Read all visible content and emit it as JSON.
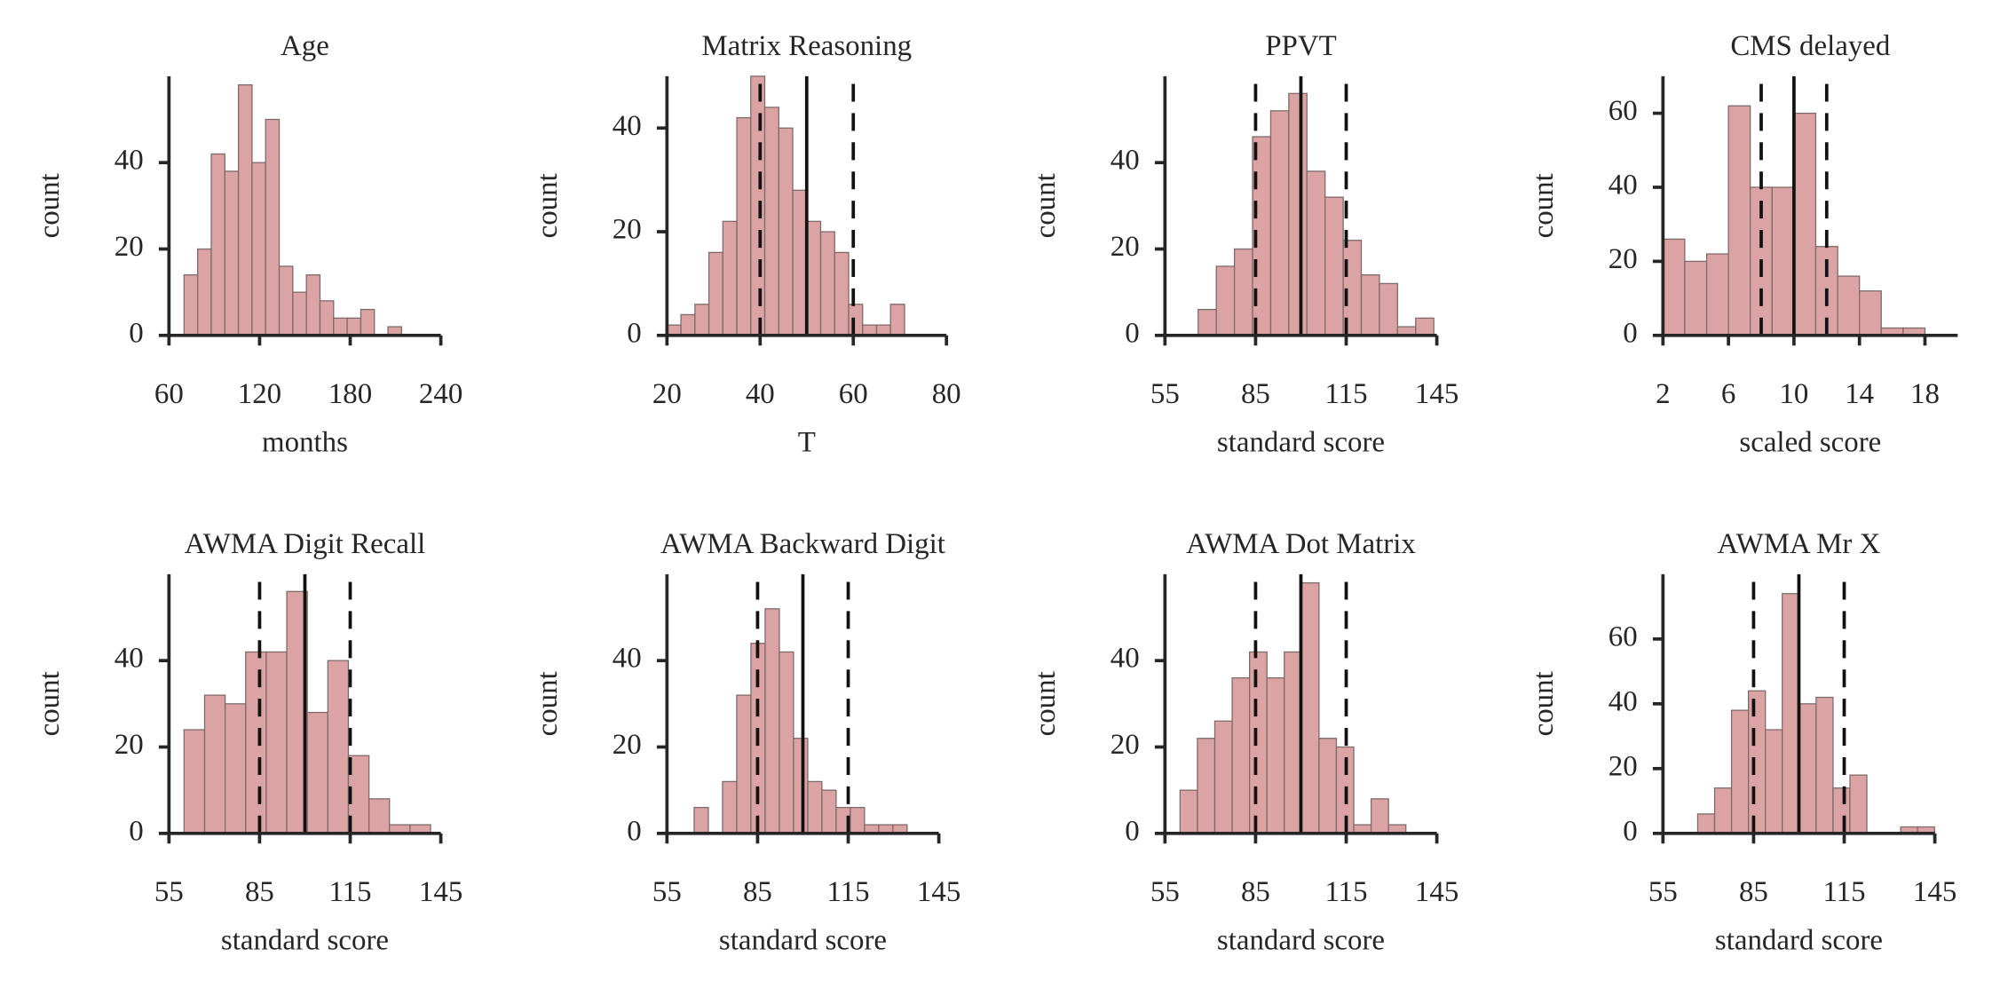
{
  "chart_data": [
    {
      "type": "histogram",
      "title": "Age",
      "xlabel": "months",
      "ylabel": "count",
      "color": "#dba3a3",
      "edgecolor": "#7d6a6a",
      "bins": [
        70,
        79,
        88,
        97,
        106,
        115,
        124,
        133,
        142,
        151,
        160,
        169,
        178,
        187,
        196,
        205,
        214
      ],
      "values": [
        14,
        20,
        42,
        38,
        58,
        40,
        50,
        16,
        10,
        14,
        8,
        4,
        4,
        6,
        0,
        2
      ],
      "xlim": [
        60,
        240
      ],
      "xticks": [
        60,
        120,
        180,
        240
      ],
      "ylim": [
        0,
        60
      ],
      "yticks": [
        0,
        20,
        40
      ],
      "reference_lines": []
    },
    {
      "type": "histogram",
      "title": "Matrix Reasoning",
      "xlabel": "T",
      "ylabel": "count",
      "color": "#dba3a3",
      "edgecolor": "#7d6a6a",
      "bins": [
        20,
        23,
        26,
        29,
        32,
        35,
        38,
        41,
        44,
        47,
        50,
        53,
        56,
        59,
        62,
        65,
        68,
        71
      ],
      "values": [
        2,
        4,
        6,
        16,
        22,
        42,
        50,
        44,
        40,
        28,
        22,
        20,
        16,
        6,
        2,
        2,
        6
      ],
      "xlim": [
        20,
        80
      ],
      "xticks": [
        20,
        40,
        60,
        80
      ],
      "ylim": [
        0,
        50
      ],
      "yticks": [
        0,
        20,
        40
      ],
      "reference_lines": [
        {
          "value": 40,
          "style": "dashed"
        },
        {
          "value": 50,
          "style": "solid"
        },
        {
          "value": 60,
          "style": "dashed"
        }
      ]
    },
    {
      "type": "histogram",
      "title": "PPVT",
      "xlabel": "standard score",
      "ylabel": "count",
      "color": "#dba3a3",
      "edgecolor": "#7d6a6a",
      "bins": [
        66,
        72,
        78,
        84,
        90,
        96,
        102,
        108,
        114,
        120,
        126,
        132,
        138,
        144
      ],
      "values": [
        6,
        16,
        20,
        46,
        52,
        56,
        38,
        32,
        22,
        14,
        12,
        2,
        4
      ],
      "xlim": [
        55,
        145
      ],
      "xticks": [
        55,
        85,
        115,
        145
      ],
      "ylim": [
        0,
        60
      ],
      "yticks": [
        0,
        20,
        40
      ],
      "reference_lines": [
        {
          "value": 85,
          "style": "dashed"
        },
        {
          "value": 100,
          "style": "solid"
        },
        {
          "value": 115,
          "style": "dashed"
        }
      ]
    },
    {
      "type": "histogram",
      "title": "CMS delayed",
      "xlabel": "scaled score",
      "ylabel": "count",
      "color": "#dba3a3",
      "edgecolor": "#7d6a6a",
      "bins": [
        2,
        3.33,
        4.67,
        6,
        7.33,
        8.67,
        10,
        11.33,
        12.67,
        14,
        15.33,
        16.67,
        18
      ],
      "values": [
        26,
        20,
        22,
        62,
        40,
        40,
        60,
        24,
        16,
        12,
        2,
        2
      ],
      "xlim": [
        2,
        20
      ],
      "xticks": [
        2,
        6,
        10,
        14,
        18
      ],
      "ylim": [
        0,
        70
      ],
      "yticks": [
        0,
        20,
        40,
        60
      ],
      "reference_lines": [
        {
          "value": 8,
          "style": "dashed"
        },
        {
          "value": 10,
          "style": "solid"
        },
        {
          "value": 12,
          "style": "dashed"
        }
      ]
    },
    {
      "type": "histogram",
      "title": "AWMA Digit Recall",
      "xlabel": "standard score",
      "ylabel": "count",
      "color": "#dba3a3",
      "edgecolor": "#7d6a6a",
      "bins": [
        60,
        66.8,
        73.6,
        80.4,
        87.2,
        94,
        100.8,
        107.6,
        114.4,
        121.2,
        128,
        134.8,
        141.6
      ],
      "values": [
        24,
        32,
        30,
        42,
        42,
        56,
        28,
        40,
        18,
        8,
        2,
        2
      ],
      "xlim": [
        55,
        145
      ],
      "xticks": [
        55,
        85,
        115,
        145
      ],
      "ylim": [
        0,
        60
      ],
      "yticks": [
        0,
        20,
        40
      ],
      "reference_lines": [
        {
          "value": 85,
          "style": "dashed"
        },
        {
          "value": 100,
          "style": "solid"
        },
        {
          "value": 115,
          "style": "dashed"
        }
      ]
    },
    {
      "type": "histogram",
      "title": "AWMA Backward Digit",
      "xlabel": "standard score",
      "ylabel": "count",
      "color": "#dba3a3",
      "edgecolor": "#7d6a6a",
      "bins": [
        64,
        68.7,
        73.4,
        78.1,
        82.8,
        87.5,
        92.2,
        96.9,
        101.6,
        106.3,
        111,
        115.7,
        120.4,
        125.1,
        129.8,
        134.5
      ],
      "values": [
        6,
        0,
        12,
        32,
        44,
        52,
        42,
        22,
        12,
        10,
        6,
        6,
        2,
        2,
        2
      ],
      "xlim": [
        55,
        145
      ],
      "xticks": [
        55,
        85,
        115,
        145
      ],
      "ylim": [
        0,
        60
      ],
      "yticks": [
        0,
        20,
        40
      ],
      "reference_lines": [
        {
          "value": 85,
          "style": "dashed"
        },
        {
          "value": 100,
          "style": "solid"
        },
        {
          "value": 115,
          "style": "dashed"
        }
      ]
    },
    {
      "type": "histogram",
      "title": "AWMA Dot Matrix",
      "xlabel": "standard score",
      "ylabel": "count",
      "color": "#dba3a3",
      "edgecolor": "#7d6a6a",
      "bins": [
        60,
        65.75,
        71.5,
        77.25,
        83,
        88.75,
        94.5,
        100.25,
        106,
        111.75,
        117.5,
        123.25,
        129,
        134.75
      ],
      "values": [
        10,
        22,
        26,
        36,
        42,
        36,
        42,
        58,
        22,
        20,
        2,
        8,
        2
      ],
      "xlim": [
        55,
        145
      ],
      "xticks": [
        55,
        85,
        115,
        145
      ],
      "ylim": [
        0,
        60
      ],
      "yticks": [
        0,
        20,
        40
      ],
      "reference_lines": [
        {
          "value": 85,
          "style": "dashed"
        },
        {
          "value": 100,
          "style": "solid"
        },
        {
          "value": 115,
          "style": "dashed"
        }
      ]
    },
    {
      "type": "histogram",
      "title": "AWMA Mr X",
      "xlabel": "standard score",
      "ylabel": "count",
      "color": "#dba3a3",
      "edgecolor": "#7d6a6a",
      "bins": [
        66.5,
        72.1,
        77.7,
        83.3,
        88.9,
        94.5,
        100.1,
        105.7,
        111.3,
        116.9,
        122.5,
        128.1,
        133.7,
        139.3,
        144.9
      ],
      "values": [
        6,
        14,
        38,
        44,
        32,
        74,
        40,
        42,
        14,
        18,
        0,
        0,
        2,
        2
      ],
      "xlim": [
        55,
        145
      ],
      "xticks": [
        55,
        85,
        115,
        145
      ],
      "ylim": [
        0,
        80
      ],
      "yticks": [
        0,
        20,
        40,
        60
      ],
      "reference_lines": [
        {
          "value": 85,
          "style": "dashed"
        },
        {
          "value": 100,
          "style": "solid"
        },
        {
          "value": 115,
          "style": "dashed"
        }
      ]
    }
  ]
}
